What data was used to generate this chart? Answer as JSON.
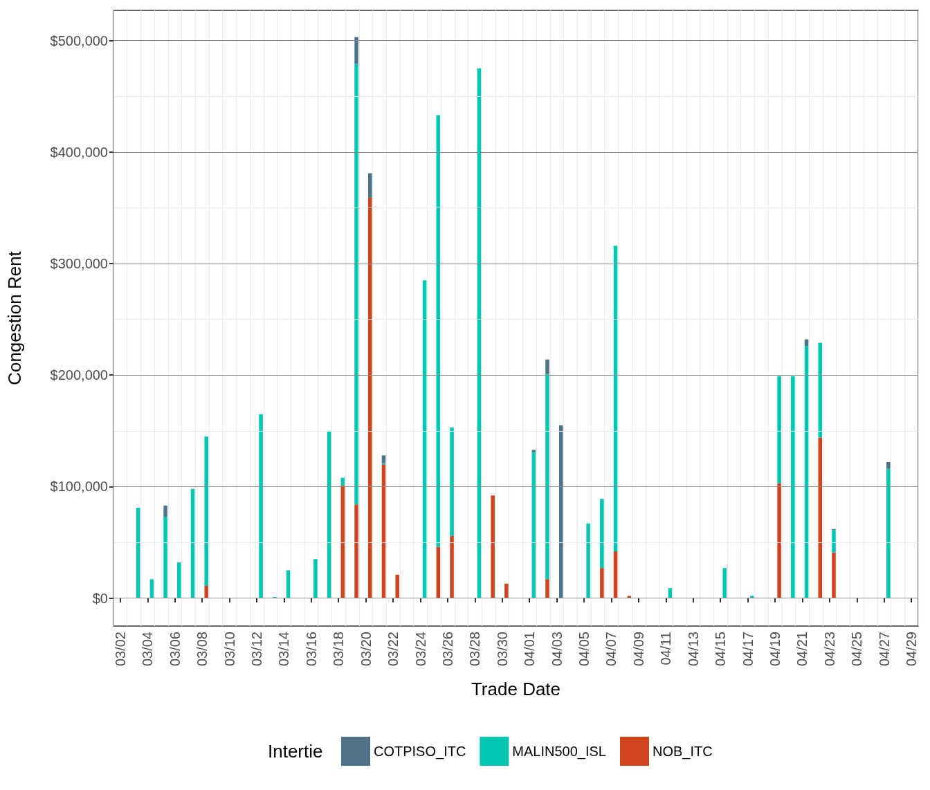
{
  "chart_data": {
    "type": "bar",
    "stacked": true,
    "xlabel": "Trade Date",
    "ylabel": "Congestion Rent",
    "legend_title": "Intertie",
    "legend": "bottom",
    "grid": true,
    "categories": [
      "03/02",
      null,
      "03/04",
      null,
      "03/06",
      null,
      "03/08",
      null,
      "03/10",
      null,
      "03/12",
      null,
      "03/14",
      null,
      "03/16",
      null,
      "03/18",
      null,
      "03/20",
      null,
      "03/22",
      null,
      "03/24",
      null,
      "03/26",
      null,
      "03/28",
      null,
      "03/30",
      null,
      "04/01",
      null,
      "04/03",
      null,
      "04/05",
      null,
      "04/07",
      null,
      "04/09",
      null,
      "04/11",
      null,
      "04/13",
      null,
      "04/15",
      null,
      "04/17",
      null,
      "04/19",
      null,
      "04/21",
      null,
      "04/23",
      null,
      "04/25",
      null,
      "04/27",
      null,
      "04/29"
    ],
    "ylim": [
      -25000,
      527000
    ],
    "yticks": [
      {
        "value": 0,
        "label": "$0"
      },
      {
        "value": 100000,
        "label": "$100,000"
      },
      {
        "value": 200000,
        "label": "$200,000"
      },
      {
        "value": 300000,
        "label": "$300,000"
      },
      {
        "value": 400000,
        "label": "$400,000"
      },
      {
        "value": 500000,
        "label": "$500,000"
      }
    ],
    "series": [
      {
        "name": "NOB_ITC",
        "color": "#d04520",
        "values": [
          null,
          null,
          null,
          null,
          null,
          null,
          11000,
          null,
          null,
          null,
          null,
          null,
          null,
          null,
          null,
          null,
          101000,
          84000,
          359000,
          120000,
          21000,
          null,
          null,
          46000,
          56000,
          null,
          null,
          92000,
          13000,
          null,
          null,
          17000,
          null,
          null,
          null,
          27000,
          42000,
          2000,
          null,
          null,
          null,
          null,
          null,
          null,
          null,
          null,
          null,
          null,
          103000,
          null,
          null,
          144000,
          41000,
          null,
          null,
          null,
          null,
          null,
          null
        ]
      },
      {
        "name": "MALIN500_ISL",
        "color": "#00c7b2",
        "values": [
          null,
          81000,
          17000,
          73000,
          32000,
          98000,
          134000,
          null,
          null,
          null,
          165000,
          1000,
          25000,
          null,
          35000,
          150000,
          7000,
          395000,
          null,
          1000,
          null,
          null,
          285000,
          387000,
          97000,
          null,
          475000,
          null,
          null,
          null,
          131000,
          184000,
          null,
          null,
          67000,
          62000,
          274000,
          null,
          null,
          null,
          9000,
          null,
          null,
          null,
          27000,
          null,
          2000,
          null,
          96000,
          199000,
          226000,
          85000,
          20000,
          null,
          null,
          null,
          116000,
          null,
          null
        ]
      },
      {
        "name": "COTPISO_ITC",
        "color": "#4e7389",
        "values": [
          null,
          null,
          null,
          10000,
          null,
          null,
          null,
          null,
          null,
          null,
          null,
          null,
          null,
          null,
          null,
          null,
          null,
          24000,
          22000,
          7000,
          null,
          null,
          null,
          null,
          null,
          null,
          null,
          null,
          null,
          null,
          2000,
          13000,
          155000,
          null,
          null,
          null,
          null,
          null,
          null,
          null,
          null,
          null,
          null,
          null,
          null,
          null,
          null,
          null,
          null,
          null,
          6000,
          null,
          1000,
          null,
          null,
          null,
          6000,
          null,
          null
        ]
      }
    ]
  }
}
